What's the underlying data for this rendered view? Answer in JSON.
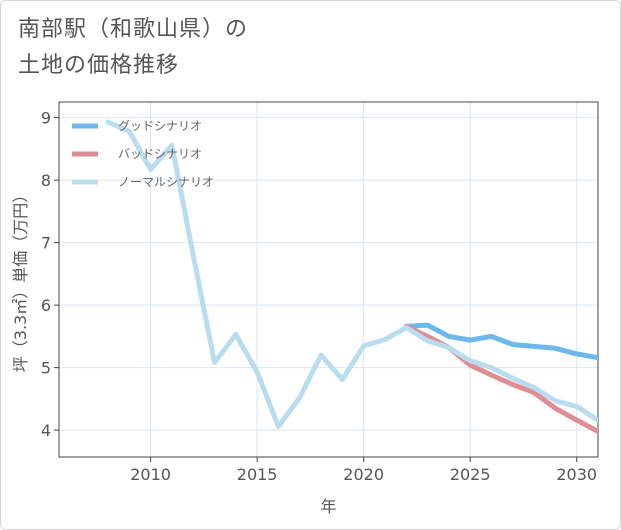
{
  "title": "南部駅（和歌山県）の\n土地の価格推移",
  "chart_data": {
    "type": "line",
    "title": "南部駅（和歌山県）の土地の価格推移",
    "xlabel": "年",
    "ylabel": "坪（3.3㎡）単価（万円）",
    "xlim": [
      2005.7,
      2031
    ],
    "ylim": [
      3.57,
      9.25
    ],
    "x_ticks": [
      2010,
      2015,
      2020,
      2025,
      2030
    ],
    "y_ticks": [
      4,
      5,
      6,
      7,
      8,
      9
    ],
    "x_tick_labels": [
      "2010",
      "2015",
      "2020",
      "2025",
      "2030"
    ],
    "y_tick_labels": [
      "4",
      "5",
      "6",
      "7",
      "8",
      "9"
    ],
    "grid": true,
    "legend_position": "top-left",
    "series": [
      {
        "name": "グッドシナリオ",
        "color": "#6cb7ec",
        "x": [
          2022,
          2023,
          2024,
          2025,
          2026,
          2027,
          2028,
          2029,
          2030,
          2031
        ],
        "values": [
          5.66,
          5.68,
          5.5,
          5.44,
          5.5,
          5.37,
          5.34,
          5.31,
          5.22,
          5.16
        ]
      },
      {
        "name": "バッドシナリオ",
        "color": "#df8c94",
        "x": [
          2022,
          2023,
          2024,
          2025,
          2026,
          2027,
          2028,
          2029,
          2030,
          2031
        ],
        "values": [
          5.66,
          5.5,
          5.32,
          5.04,
          4.88,
          4.73,
          4.6,
          4.35,
          4.16,
          3.98
        ]
      },
      {
        "name": "ノーマルシナリオ",
        "color": "#b9ddee",
        "x": [
          2008,
          2009,
          2010,
          2011,
          2012,
          2013,
          2014,
          2015,
          2016,
          2017,
          2018,
          2019,
          2020,
          2021,
          2022,
          2023,
          2024,
          2025,
          2026,
          2027,
          2028,
          2029,
          2030,
          2031
        ],
        "values": [
          8.93,
          8.78,
          8.17,
          8.56,
          6.8,
          5.08,
          5.53,
          4.93,
          4.06,
          4.52,
          5.2,
          4.81,
          5.35,
          5.45,
          5.64,
          5.43,
          5.32,
          5.11,
          5.0,
          4.83,
          4.68,
          4.47,
          4.38,
          4.16
        ]
      }
    ]
  }
}
